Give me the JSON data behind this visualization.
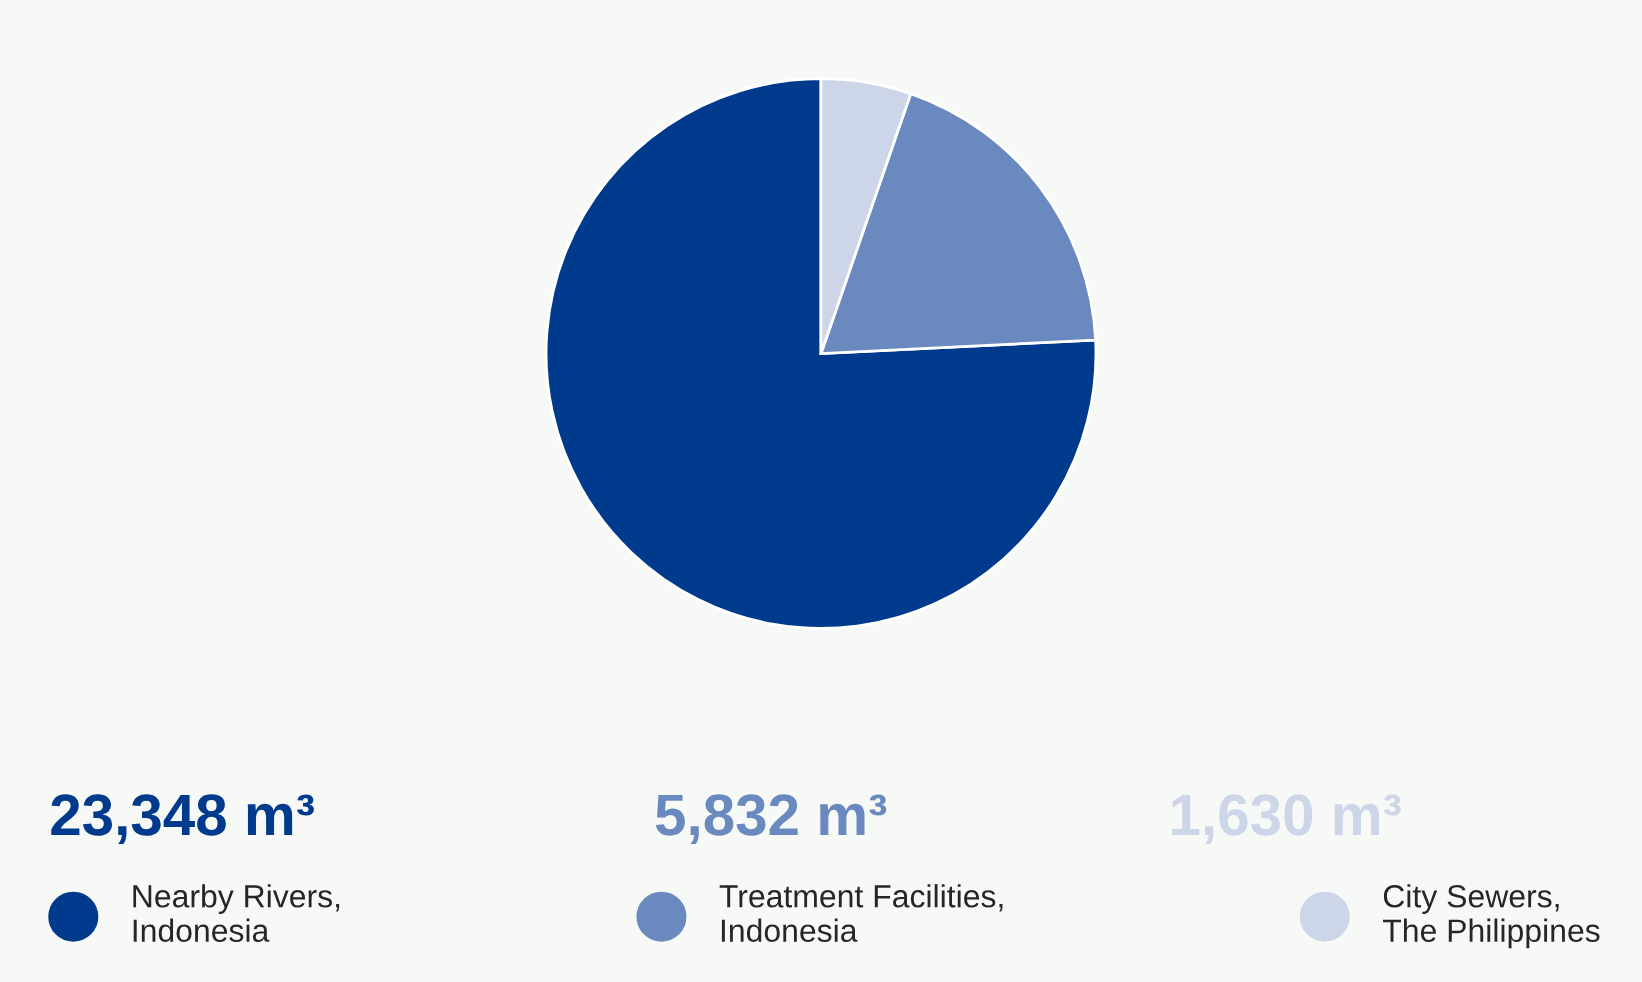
{
  "chart_data": {
    "type": "pie",
    "categories": [
      "Nearby Rivers,\nIndonesia",
      "Treatment Facilities,\nIndonesia",
      "City Sewers,\nThe Philippines"
    ],
    "values": [
      23348,
      5832,
      1630
    ],
    "value_labels": [
      "23,348 m³",
      "5,832 m³",
      "1,630 m³"
    ],
    "colors": [
      "#003a8c",
      "#6a8abf",
      "#cdd6e8"
    ],
    "legend": "bottom"
  }
}
